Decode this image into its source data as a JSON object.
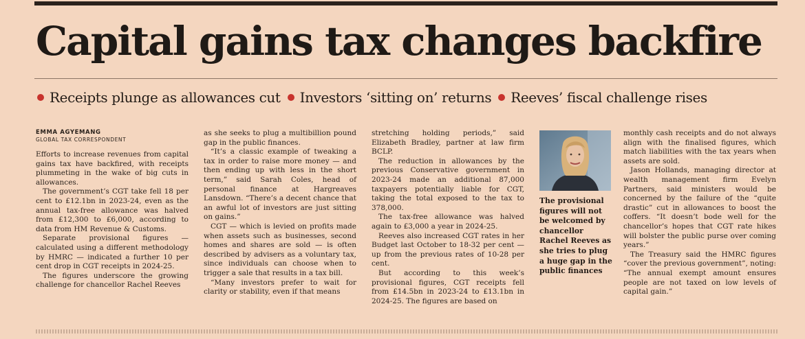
{
  "article": {
    "headline": "Capital gains tax changes backfire",
    "standfirst": [
      "Receipts plunge as allowances cut",
      "Investors ‘sitting on’ returns",
      "Reeves’ fiscal challenge rises"
    ],
    "byline": "EMMA AGYEMANG",
    "byline_title": "GLOBAL TAX CORRESPONDENT",
    "caption": "The provisional figures will not be welcomed by chancellor Rachel Reeves as she tries to plug a huge gap in the public finances",
    "columns": [
      [
        "Efforts to increase revenues from capital gains tax have backfired, with receipts plummeting in the wake of big cuts in allowances.",
        "The government’s CGT take fell 18 per cent to £12.1bn in 2023-24, even as the annual tax-free allowance was halved from £12,300 to £6,000, according to data from HM Revenue & Customs.",
        "Separate provisional figures — calculated using a different methodology by HMRC — indicated a further 10 per cent drop in CGT receipts in 2024-25.",
        "The figures underscore the growing challenge for chancellor Rachel Reeves"
      ],
      [
        "as she seeks to plug a multibillion pound gap in the public finances.",
        "“It’s a classic example of tweaking a tax in order to raise more money — and then ending up with less in the short term,” said Sarah Coles, head of personal finance at Hargreaves Lansdown. “There’s a decent chance that an awful lot of investors are just sitting on gains.”",
        "CGT — which is levied on profits made when assets such as businesses, second homes and shares are sold — is often described by advisers as a voluntary tax, since individuals can choose when to trigger a sale that results in a tax bill.",
        "“Many investors prefer to wait for clarity or stability, even if that means"
      ],
      [
        "stretching holding periods,” said Elizabeth Bradley, partner at law firm BCLP.",
        "The reduction in allowances by the previous Conservative government in 2023-24 made an additional 87,000 taxpayers potentially liable for CGT, taking the total exposed to the tax to 378,000.",
        "The tax-free allowance was halved again to £3,000 a year in 2024-25.",
        "Reeves also increased CGT rates in her Budget last October to 18-32 per cent — up from the previous rates of 10-28 per cent.",
        "But according to this week’s provisional figures, CGT receipts fell from £14.5bn in 2023-24 to £13.1bn in 2024-25. The figures are based on"
      ],
      [
        "monthly cash receipts and do not always align with the finalised figures, which match liabilities with the tax years when assets are sold.",
        "Jason Hollands, managing director at wealth management firm Evelyn Partners, said ministers would be concerned by the failure of the “quite drastic” cut in allowances to boost the coffers. “It doesn’t bode well for the chancellor’s hopes that CGT rate hikes will bolster the public purse over coming years.”",
        "The Treasury said the HMRC figures “cover the previous government”, noting: “The annual exempt amount ensures people are not taxed on low levels of capital gain.”"
      ]
    ]
  }
}
